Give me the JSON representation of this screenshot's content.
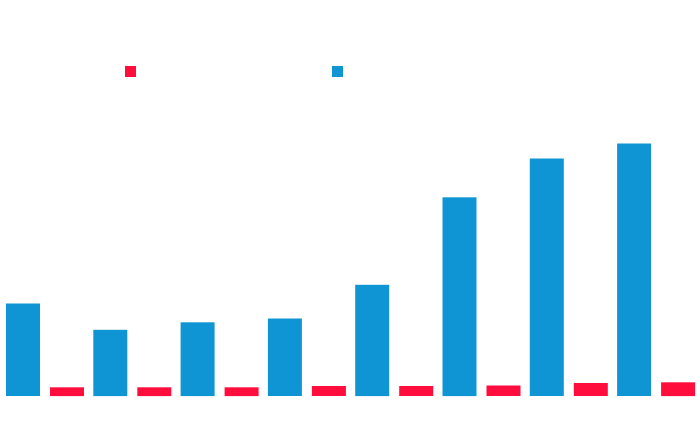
{
  "chart_data": {
    "type": "bar",
    "title": "",
    "xlabel": "",
    "ylabel": "",
    "categories": [
      "",
      "",
      "",
      "",
      "",
      "",
      "",
      ""
    ],
    "ylim": [
      0,
      100
    ],
    "grid": false,
    "legend": "top",
    "series": [
      {
        "color": "#1095d4",
        "values": [
          37,
          26.5,
          29.5,
          31,
          44.5,
          79.5,
          95,
          101
        ]
      },
      {
        "color": "#ff0d3d",
        "values": [
          3.5,
          3.5,
          3.5,
          4,
          4,
          4.2,
          5.2,
          5.5
        ]
      }
    ]
  }
}
